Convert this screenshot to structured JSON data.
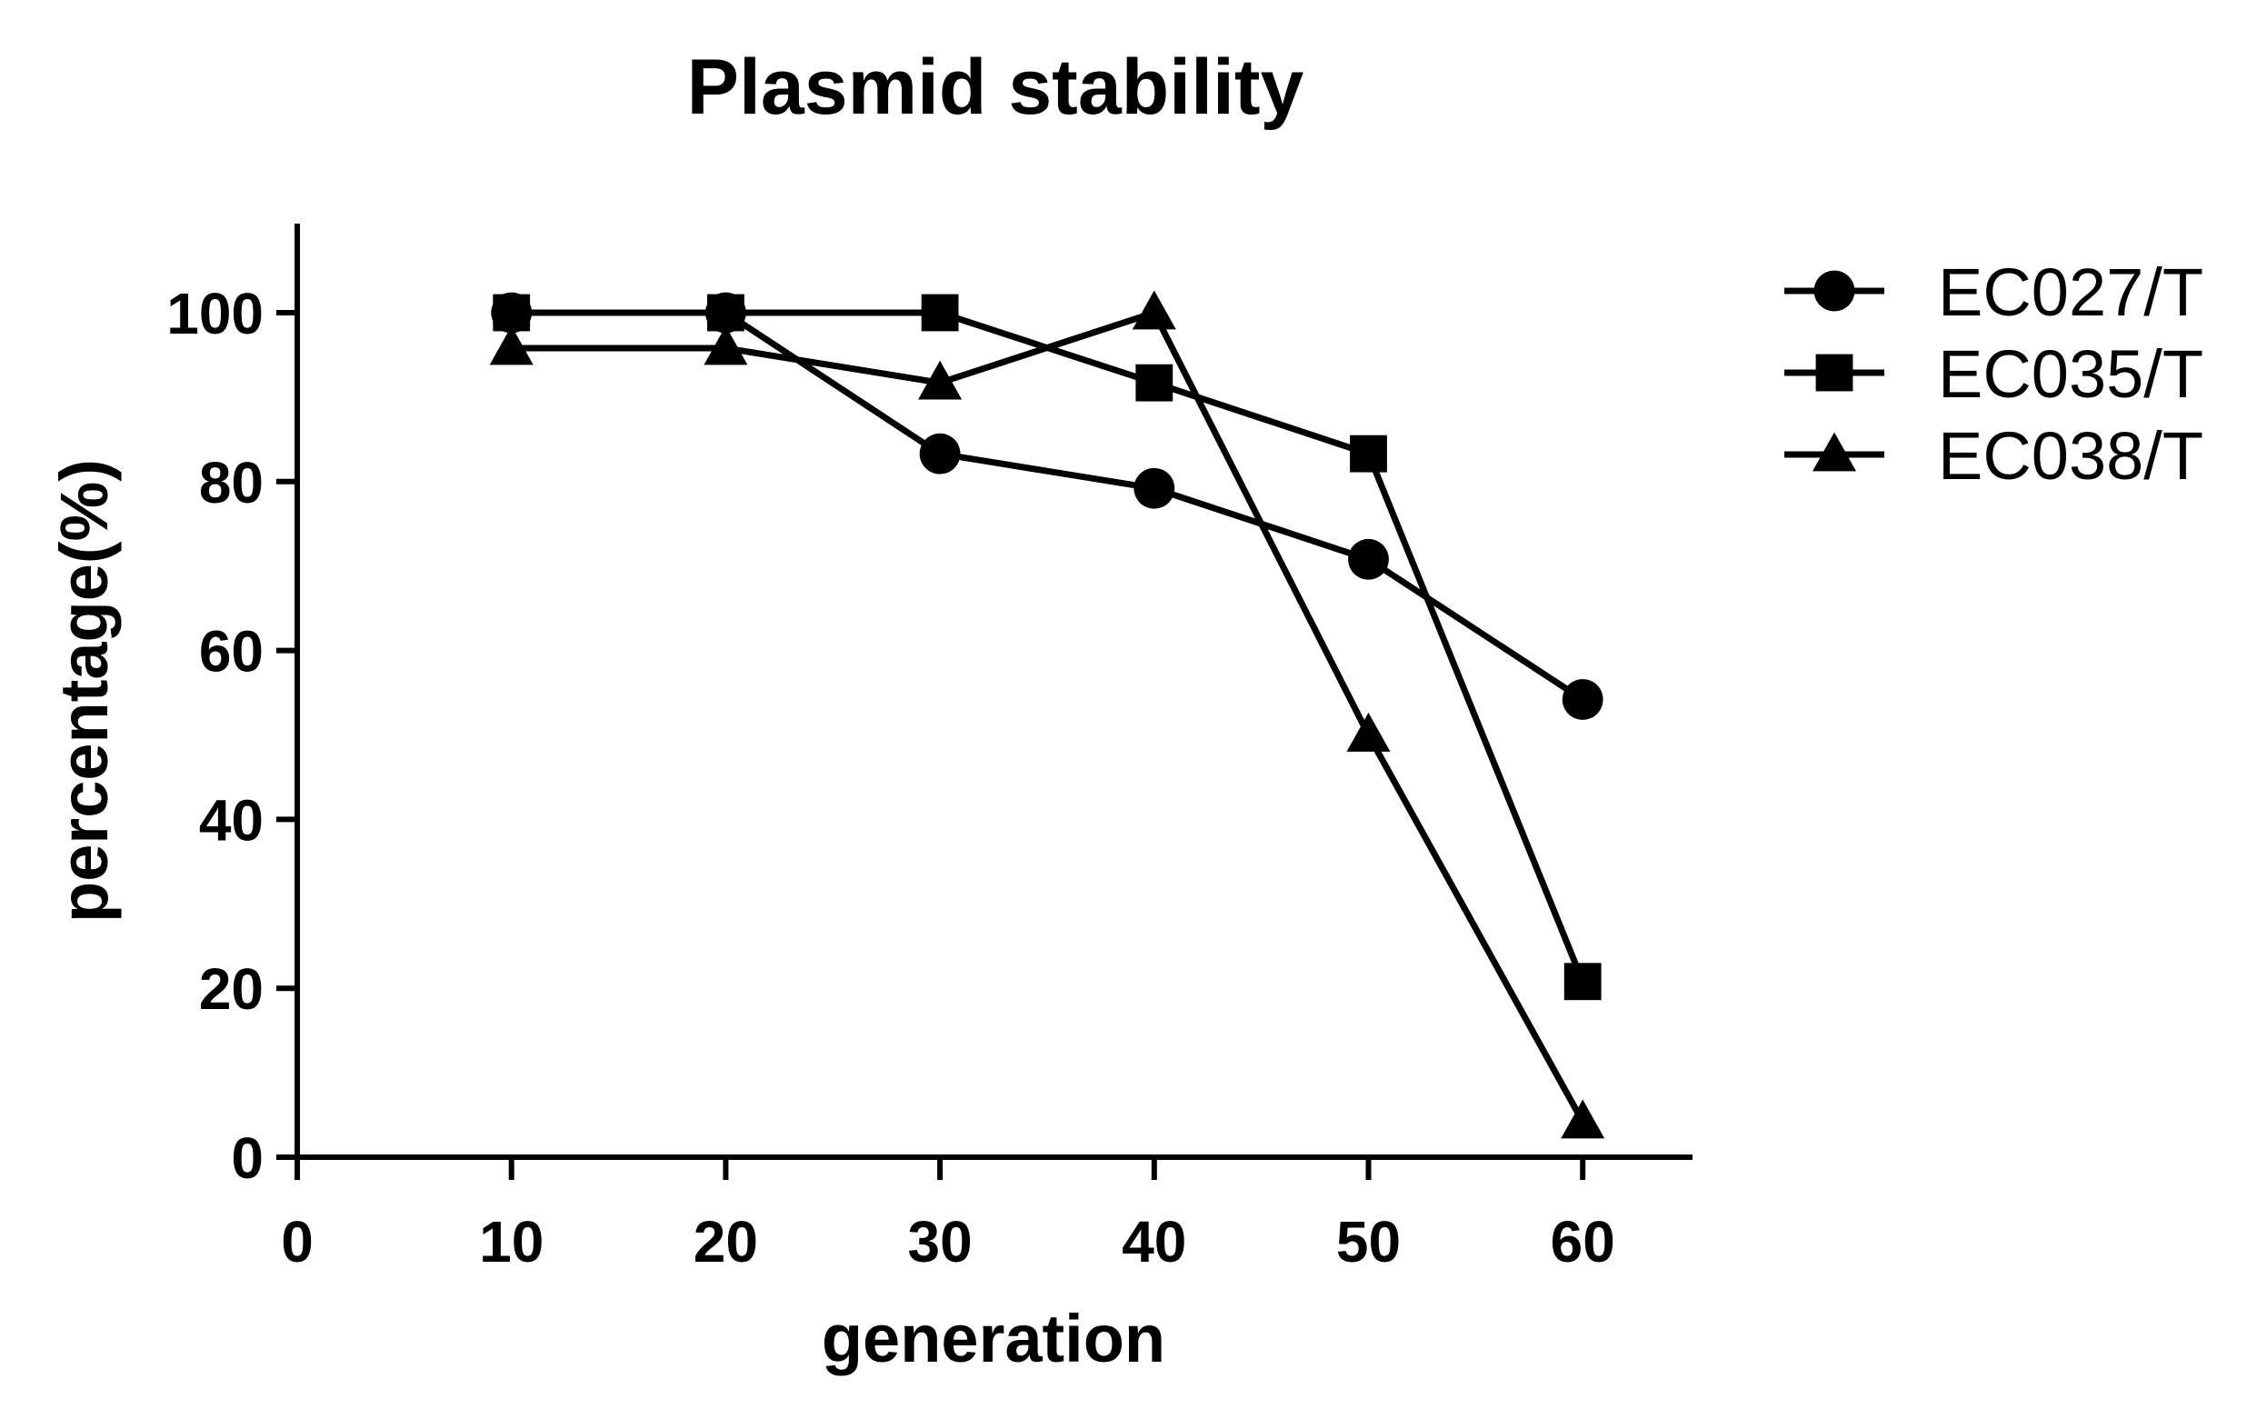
{
  "chart_data": {
    "type": "line",
    "title": "Plasmid stability",
    "xlabel": "generation",
    "ylabel": "percentage(%)",
    "xlim": [
      0,
      65
    ],
    "ylim": [
      0,
      110
    ],
    "x_ticks": [
      0,
      10,
      20,
      30,
      40,
      50,
      60
    ],
    "y_ticks": [
      0,
      20,
      40,
      60,
      80,
      100
    ],
    "grid": false,
    "legend_position": "top-right outside",
    "x": [
      10,
      20,
      30,
      40,
      50,
      60
    ],
    "series": [
      {
        "name": "EC027/T",
        "marker": "circle",
        "values": [
          100,
          100,
          83.3,
          79.2,
          70.8,
          54.2
        ]
      },
      {
        "name": "EC035/T",
        "marker": "square",
        "values": [
          100,
          100,
          100,
          91.7,
          83.3,
          20.8
        ]
      },
      {
        "name": "EC038/T",
        "marker": "triangle",
        "values": [
          95.8,
          95.8,
          91.7,
          100,
          50,
          4.2
        ]
      }
    ],
    "colors": {
      "line": "#000000",
      "marker": "#000000",
      "background": "#ffffff"
    }
  }
}
